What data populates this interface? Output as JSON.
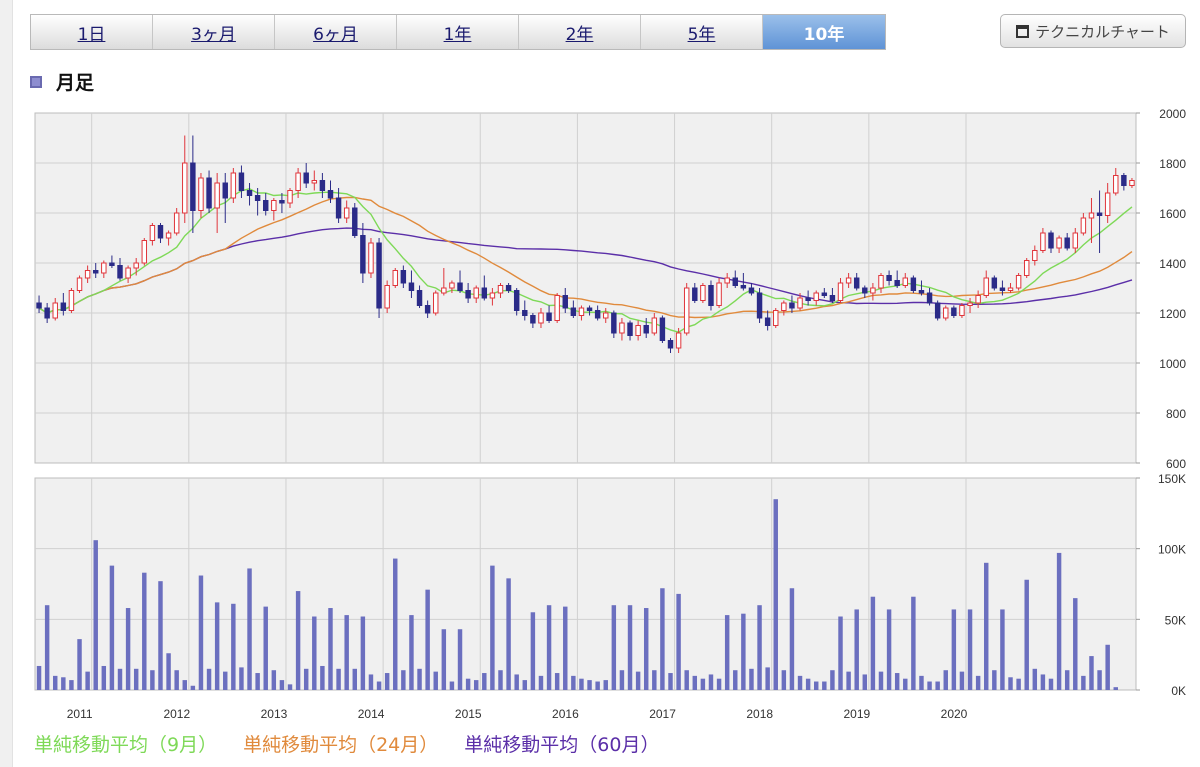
{
  "tabs": [
    {
      "label": "1日",
      "active": false
    },
    {
      "label": "3ヶ月",
      "active": false
    },
    {
      "label": "6ヶ月",
      "active": false
    },
    {
      "label": "1年",
      "active": false
    },
    {
      "label": "2年",
      "active": false
    },
    {
      "label": "5年",
      "active": false
    },
    {
      "label": "10年",
      "active": true
    }
  ],
  "technical_chart_label": "テクニカルチャート",
  "section_title": "月足",
  "legend": [
    {
      "label": "単純移動平均（9月）",
      "color": "#7ed957"
    },
    {
      "label": "単純移動平均（24月）",
      "color": "#e08a3c"
    },
    {
      "label": "単純移動平均（60月）",
      "color": "#5b2fa8"
    }
  ],
  "colors": {
    "up": "#e0353b",
    "down": "#2b2b88",
    "volume": "#6b6fbf"
  },
  "chart_data": {
    "type": "candlestick",
    "x_tick_labels": [
      "2011",
      "2012",
      "2013",
      "2014",
      "2015",
      "2016",
      "2017",
      "2018",
      "2019",
      "2020"
    ],
    "price_axis": {
      "ticks": [
        "600",
        "800",
        "1000",
        "1200",
        "1400",
        "1600",
        "1800",
        "2000"
      ],
      "ylim": [
        600,
        2000
      ],
      "grid": true
    },
    "volume_axis": {
      "ticks": [
        "0K",
        "50K",
        "100K",
        "150K"
      ],
      "ylim": [
        0,
        150000
      ],
      "grid": true
    },
    "candles": [
      [
        1240,
        1270,
        1200,
        1220
      ],
      [
        1220,
        1240,
        1160,
        1180
      ],
      [
        1180,
        1260,
        1170,
        1240
      ],
      [
        1240,
        1280,
        1190,
        1210
      ],
      [
        1210,
        1300,
        1200,
        1290
      ],
      [
        1290,
        1350,
        1280,
        1340
      ],
      [
        1340,
        1390,
        1320,
        1370
      ],
      [
        1370,
        1400,
        1340,
        1360
      ],
      [
        1360,
        1410,
        1340,
        1400
      ],
      [
        1400,
        1430,
        1380,
        1390
      ],
      [
        1390,
        1420,
        1330,
        1340
      ],
      [
        1340,
        1390,
        1320,
        1380
      ],
      [
        1380,
        1420,
        1350,
        1400
      ],
      [
        1400,
        1500,
        1390,
        1490
      ],
      [
        1490,
        1560,
        1470,
        1550
      ],
      [
        1550,
        1560,
        1480,
        1500
      ],
      [
        1500,
        1530,
        1470,
        1520
      ],
      [
        1520,
        1620,
        1510,
        1600
      ],
      [
        1600,
        1910,
        1560,
        1800
      ],
      [
        1800,
        1910,
        1520,
        1610
      ],
      [
        1610,
        1760,
        1580,
        1740
      ],
      [
        1740,
        1770,
        1600,
        1620
      ],
      [
        1620,
        1760,
        1520,
        1720
      ],
      [
        1720,
        1760,
        1560,
        1660
      ],
      [
        1660,
        1780,
        1640,
        1760
      ],
      [
        1760,
        1790,
        1660,
        1690
      ],
      [
        1690,
        1720,
        1630,
        1670
      ],
      [
        1670,
        1700,
        1590,
        1650
      ],
      [
        1650,
        1680,
        1590,
        1610
      ],
      [
        1610,
        1660,
        1570,
        1650
      ],
      [
        1650,
        1680,
        1600,
        1640
      ],
      [
        1640,
        1700,
        1620,
        1690
      ],
      [
        1690,
        1780,
        1660,
        1760
      ],
      [
        1760,
        1800,
        1700,
        1720
      ],
      [
        1720,
        1770,
        1690,
        1730
      ],
      [
        1730,
        1760,
        1660,
        1690
      ],
      [
        1690,
        1730,
        1640,
        1660
      ],
      [
        1660,
        1700,
        1560,
        1580
      ],
      [
        1580,
        1650,
        1560,
        1620
      ],
      [
        1620,
        1640,
        1500,
        1510
      ],
      [
        1510,
        1560,
        1320,
        1360
      ],
      [
        1360,
        1500,
        1340,
        1480
      ],
      [
        1480,
        1500,
        1180,
        1220
      ],
      [
        1220,
        1330,
        1200,
        1310
      ],
      [
        1310,
        1380,
        1300,
        1370
      ],
      [
        1370,
        1390,
        1300,
        1320
      ],
      [
        1320,
        1370,
        1260,
        1290
      ],
      [
        1290,
        1310,
        1220,
        1230
      ],
      [
        1230,
        1250,
        1180,
        1200
      ],
      [
        1200,
        1290,
        1190,
        1280
      ],
      [
        1280,
        1380,
        1270,
        1300
      ],
      [
        1300,
        1330,
        1280,
        1320
      ],
      [
        1320,
        1370,
        1280,
        1290
      ],
      [
        1290,
        1320,
        1240,
        1260
      ],
      [
        1260,
        1310,
        1240,
        1300
      ],
      [
        1300,
        1350,
        1250,
        1260
      ],
      [
        1260,
        1300,
        1230,
        1280
      ],
      [
        1280,
        1320,
        1260,
        1310
      ],
      [
        1310,
        1320,
        1280,
        1290
      ],
      [
        1290,
        1300,
        1190,
        1210
      ],
      [
        1210,
        1250,
        1170,
        1190
      ],
      [
        1190,
        1200,
        1140,
        1160
      ],
      [
        1160,
        1220,
        1140,
        1200
      ],
      [
        1200,
        1230,
        1160,
        1170
      ],
      [
        1170,
        1280,
        1160,
        1270
      ],
      [
        1270,
        1300,
        1200,
        1220
      ],
      [
        1220,
        1250,
        1180,
        1190
      ],
      [
        1190,
        1230,
        1170,
        1220
      ],
      [
        1220,
        1230,
        1190,
        1210
      ],
      [
        1210,
        1230,
        1170,
        1180
      ],
      [
        1180,
        1220,
        1160,
        1200
      ],
      [
        1200,
        1210,
        1100,
        1120
      ],
      [
        1120,
        1180,
        1090,
        1160
      ],
      [
        1160,
        1170,
        1090,
        1110
      ],
      [
        1110,
        1170,
        1090,
        1150
      ],
      [
        1150,
        1180,
        1100,
        1120
      ],
      [
        1120,
        1200,
        1110,
        1180
      ],
      [
        1180,
        1190,
        1080,
        1090
      ],
      [
        1090,
        1100,
        1040,
        1060
      ],
      [
        1060,
        1140,
        1040,
        1120
      ],
      [
        1120,
        1320,
        1110,
        1300
      ],
      [
        1300,
        1320,
        1240,
        1250
      ],
      [
        1250,
        1320,
        1240,
        1310
      ],
      [
        1310,
        1330,
        1210,
        1230
      ],
      [
        1230,
        1340,
        1220,
        1320
      ],
      [
        1320,
        1360,
        1300,
        1340
      ],
      [
        1340,
        1370,
        1300,
        1310
      ],
      [
        1310,
        1360,
        1290,
        1300
      ],
      [
        1300,
        1320,
        1270,
        1280
      ],
      [
        1280,
        1300,
        1160,
        1180
      ],
      [
        1180,
        1210,
        1130,
        1150
      ],
      [
        1150,
        1220,
        1140,
        1210
      ],
      [
        1210,
        1250,
        1190,
        1240
      ],
      [
        1240,
        1270,
        1200,
        1220
      ],
      [
        1220,
        1280,
        1210,
        1260
      ],
      [
        1260,
        1290,
        1230,
        1250
      ],
      [
        1250,
        1290,
        1230,
        1280
      ],
      [
        1280,
        1300,
        1260,
        1270
      ],
      [
        1270,
        1300,
        1240,
        1250
      ],
      [
        1250,
        1340,
        1240,
        1320
      ],
      [
        1320,
        1360,
        1300,
        1340
      ],
      [
        1340,
        1360,
        1290,
        1300
      ],
      [
        1300,
        1310,
        1260,
        1280
      ],
      [
        1280,
        1320,
        1250,
        1300
      ],
      [
        1300,
        1360,
        1280,
        1350
      ],
      [
        1350,
        1370,
        1310,
        1330
      ],
      [
        1330,
        1370,
        1300,
        1310
      ],
      [
        1310,
        1360,
        1300,
        1340
      ],
      [
        1340,
        1350,
        1280,
        1290
      ],
      [
        1290,
        1330,
        1270,
        1280
      ],
      [
        1280,
        1300,
        1230,
        1240
      ],
      [
        1240,
        1250,
        1170,
        1180
      ],
      [
        1180,
        1230,
        1170,
        1220
      ],
      [
        1220,
        1230,
        1180,
        1190
      ],
      [
        1190,
        1240,
        1180,
        1230
      ],
      [
        1230,
        1260,
        1200,
        1240
      ],
      [
        1240,
        1290,
        1220,
        1270
      ],
      [
        1270,
        1370,
        1260,
        1340
      ],
      [
        1340,
        1350,
        1290,
        1300
      ],
      [
        1300,
        1330,
        1270,
        1290
      ],
      [
        1290,
        1320,
        1280,
        1300
      ],
      [
        1300,
        1360,
        1290,
        1350
      ],
      [
        1350,
        1420,
        1340,
        1410
      ],
      [
        1410,
        1470,
        1390,
        1450
      ],
      [
        1450,
        1540,
        1440,
        1520
      ],
      [
        1520,
        1530,
        1440,
        1460
      ],
      [
        1460,
        1510,
        1440,
        1500
      ],
      [
        1500,
        1520,
        1450,
        1460
      ],
      [
        1460,
        1540,
        1440,
        1520
      ],
      [
        1520,
        1600,
        1510,
        1580
      ],
      [
        1580,
        1660,
        1480,
        1600
      ],
      [
        1600,
        1690,
        1440,
        1590
      ],
      [
        1590,
        1720,
        1560,
        1680
      ],
      [
        1680,
        1780,
        1670,
        1750
      ],
      [
        1750,
        1760,
        1690,
        1710
      ],
      [
        1710,
        1740,
        1700,
        1730
      ]
    ],
    "volume": [
      17,
      60,
      10,
      9,
      7,
      36,
      13,
      106,
      17,
      88,
      15,
      58,
      15,
      83,
      14,
      77,
      26,
      14,
      7,
      3,
      81,
      15,
      62,
      13,
      61,
      16,
      86,
      12,
      59,
      14,
      7,
      4,
      70,
      15,
      52,
      17,
      58,
      15,
      53,
      15,
      52,
      11,
      6,
      12,
      93,
      14,
      53,
      15,
      71,
      13,
      43,
      6,
      43,
      8,
      7,
      12,
      88,
      14,
      79,
      11,
      7,
      55,
      10,
      60,
      12,
      59,
      10,
      8,
      7,
      6,
      7,
      60,
      14,
      60,
      13,
      58,
      14,
      72,
      12,
      68,
      14,
      10,
      8,
      11,
      8,
      53,
      14,
      54,
      15,
      60,
      16,
      135,
      14,
      72,
      10,
      8,
      6,
      6,
      14,
      52,
      13,
      57,
      11,
      66,
      13,
      57,
      12,
      8,
      66,
      10,
      6,
      6,
      14,
      57,
      13,
      57,
      10,
      90,
      14,
      57,
      9,
      8,
      78,
      15,
      11,
      8,
      97,
      14,
      65,
      10,
      24,
      14,
      32,
      2
    ]
  }
}
